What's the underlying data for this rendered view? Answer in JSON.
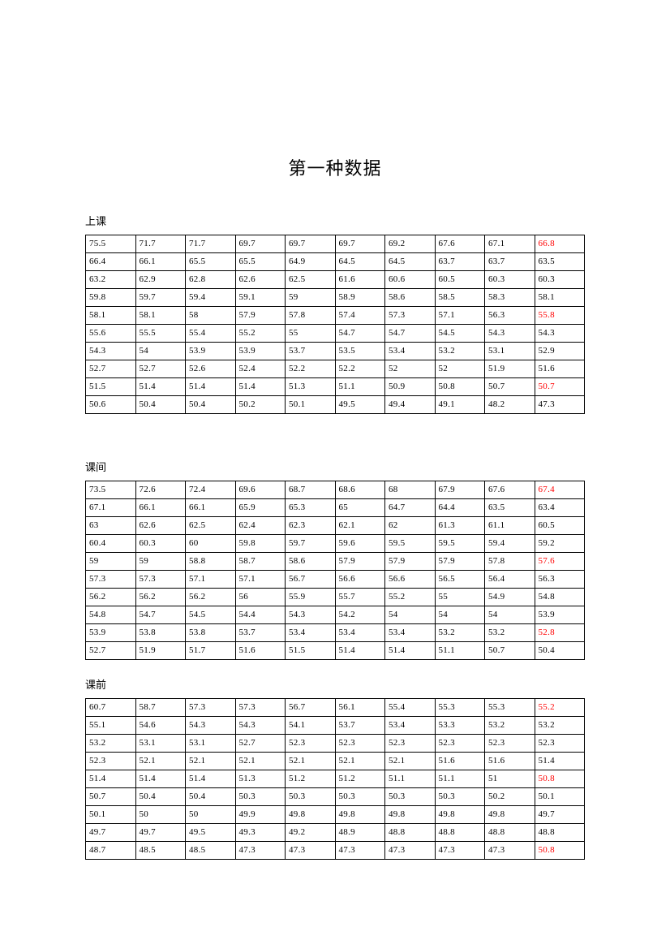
{
  "title": "第一种数据",
  "sections": [
    {
      "label": "上课",
      "rows": [
        [
          "75.5",
          "71.7",
          "71.7",
          "69.7",
          "69.7",
          "69.7",
          "69.2",
          "67.6",
          "67.1",
          "66.8"
        ],
        [
          "66.4",
          "66.1",
          "65.5",
          "65.5",
          "64.9",
          "64.5",
          "64.5",
          "63.7",
          "63.7",
          "63.5"
        ],
        [
          "63.2",
          "62.9",
          "62.8",
          "62.6",
          "62.5",
          "61.6",
          "60.6",
          "60.5",
          "60.3",
          "60.3"
        ],
        [
          "59.8",
          "59.7",
          "59.4",
          "59.1",
          "59",
          "58.9",
          "58.6",
          "58.5",
          "58.3",
          "58.1"
        ],
        [
          "58.1",
          "58.1",
          "58",
          "57.9",
          "57.8",
          "57.4",
          "57.3",
          "57.1",
          "56.3",
          "55.8"
        ],
        [
          "55.6",
          "55.5",
          "55.4",
          "55.2",
          "55",
          "54.7",
          "54.7",
          "54.5",
          "54.3",
          "54.3"
        ],
        [
          "54.3",
          "54",
          "53.9",
          "53.9",
          "53.7",
          "53.5",
          "53.4",
          "53.2",
          "53.1",
          "52.9"
        ],
        [
          "52.7",
          "52.7",
          "52.6",
          "52.4",
          "52.2",
          "52.2",
          "52",
          "52",
          "51.9",
          "51.6"
        ],
        [
          "51.5",
          "51.4",
          "51.4",
          "51.4",
          "51.3",
          "51.1",
          "50.9",
          "50.8",
          "50.7",
          "50.7"
        ],
        [
          "50.6",
          "50.4",
          "50.4",
          "50.2",
          "50.1",
          "49.5",
          "49.4",
          "49.1",
          "48.2",
          "47.3"
        ]
      ],
      "red": [
        [
          0,
          9
        ],
        [
          4,
          9
        ],
        [
          8,
          9
        ]
      ]
    },
    {
      "label": "课间",
      "rows": [
        [
          "73.5",
          "72.6",
          "72.4",
          "69.6",
          "68.7",
          "68.6",
          "68",
          "67.9",
          "67.6",
          "67.4"
        ],
        [
          "67.1",
          "66.1",
          "66.1",
          "65.9",
          "65.3",
          "65",
          "64.7",
          "64.4",
          "63.5",
          "63.4"
        ],
        [
          "63",
          "62.6",
          "62.5",
          "62.4",
          "62.3",
          "62.1",
          "62",
          "61.3",
          "61.1",
          "60.5"
        ],
        [
          "60.4",
          "60.3",
          "60",
          "59.8",
          "59.7",
          "59.6",
          "59.5",
          "59.5",
          "59.4",
          "59.2"
        ],
        [
          "59",
          "59",
          "58.8",
          "58.7",
          "58.6",
          "57.9",
          "57.9",
          "57.9",
          "57.8",
          "57.6"
        ],
        [
          "57.3",
          "57.3",
          "57.1",
          "57.1",
          "56.7",
          "56.6",
          "56.6",
          "56.5",
          "56.4",
          "56.3"
        ],
        [
          "56.2",
          "56.2",
          "56.2",
          "56",
          "55.9",
          "55.7",
          "55.2",
          "55",
          "54.9",
          "54.8"
        ],
        [
          "54.8",
          "54.7",
          "54.5",
          "54.4",
          "54.3",
          "54.2",
          "54",
          "54",
          "54",
          "53.9"
        ],
        [
          "53.9",
          "53.8",
          "53.8",
          "53.7",
          "53.4",
          "53.4",
          "53.4",
          "53.2",
          "53.2",
          "52.8"
        ],
        [
          "52.7",
          "51.9",
          "51.7",
          "51.6",
          "51.5",
          "51.4",
          "51.4",
          "51.1",
          "50.7",
          "50.4"
        ]
      ],
      "red": [
        [
          0,
          9
        ],
        [
          4,
          9
        ],
        [
          8,
          9
        ]
      ]
    },
    {
      "label": "课前",
      "rows": [
        [
          "60.7",
          "58.7",
          "57.3",
          "57.3",
          "56.7",
          "56.1",
          "55.4",
          "55.3",
          "55.3",
          "55.2"
        ],
        [
          "55.1",
          "54.6",
          "54.3",
          "54.3",
          "54.1",
          "53.7",
          "53.4",
          "53.3",
          "53.2",
          "53.2"
        ],
        [
          "53.2",
          "53.1",
          "53.1",
          "52.7",
          "52.3",
          "52.3",
          "52.3",
          "52.3",
          "52.3",
          "52.3"
        ],
        [
          "52.3",
          "52.1",
          "52.1",
          "52.1",
          "52.1",
          "52.1",
          "52.1",
          "51.6",
          "51.6",
          "51.4"
        ],
        [
          "51.4",
          "51.4",
          "51.4",
          "51.3",
          "51.2",
          "51.2",
          "51.1",
          "51.1",
          "51",
          "50.8"
        ],
        [
          "50.7",
          "50.4",
          "50.4",
          "50.3",
          "50.3",
          "50.3",
          "50.3",
          "50.3",
          "50.2",
          "50.1"
        ],
        [
          "50.1",
          "50",
          "50",
          "49.9",
          "49.8",
          "49.8",
          "49.8",
          "49.8",
          "49.8",
          "49.7"
        ],
        [
          "49.7",
          "49.7",
          "49.5",
          "49.3",
          "49.2",
          "48.9",
          "48.8",
          "48.8",
          "48.8",
          "48.8"
        ],
        [
          "48.7",
          "48.5",
          "48.5",
          "47.3",
          "47.3",
          "47.3",
          "47.3",
          "47.3",
          "47.3",
          "50.8"
        ]
      ],
      "red": [
        [
          0,
          9
        ],
        [
          4,
          9
        ],
        [
          8,
          9
        ]
      ]
    }
  ],
  "style": {
    "text_color": "#000000",
    "highlight_color": "#ff0000",
    "background_color": "#ffffff",
    "border_color": "#000000",
    "title_fontsize": 22,
    "label_fontsize": 13,
    "cell_fontsize": 11,
    "columns": 10
  }
}
